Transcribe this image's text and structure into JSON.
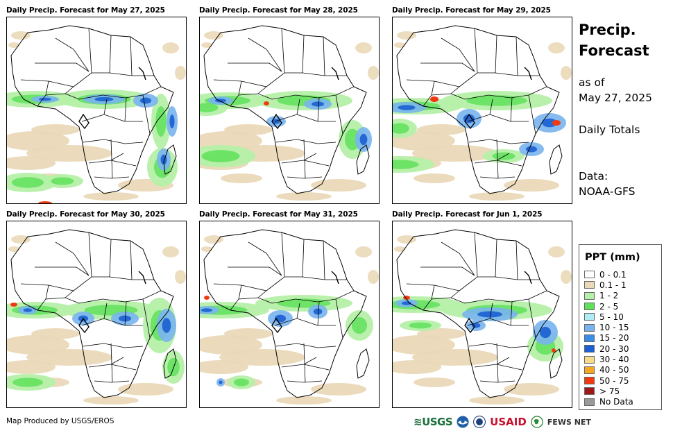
{
  "panels": [
    {
      "title": "Daily Precip. Forecast for May 27, 2025"
    },
    {
      "title": "Daily Precip. Forecast for May 28, 2025"
    },
    {
      "title": "Daily Precip. Forecast for May 29, 2025"
    },
    {
      "title": "Daily Precip. Forecast for May 30, 2025"
    },
    {
      "title": "Daily Precip. Forecast for May 31, 2025"
    },
    {
      "title": "Daily Precip. Forecast for Jun 1, 2025"
    }
  ],
  "side": {
    "title_line1": "Precip.",
    "title_line2": "Forecast",
    "as_of_line1": "as of",
    "as_of_line2": "May 27, 2025",
    "totals": "Daily Totals",
    "data_line1": "Data:",
    "data_line2": "NOAA-GFS"
  },
  "legend": {
    "title": "PPT (mm)",
    "items": [
      {
        "label": "0 - 0.1",
        "color": "#ffffff"
      },
      {
        "label": "0.1 - 1",
        "color": "#ead9b8"
      },
      {
        "label": "1 - 2",
        "color": "#b5f0a8"
      },
      {
        "label": "2 - 5",
        "color": "#5fe05a"
      },
      {
        "label": "5 - 10",
        "color": "#b0ecf4"
      },
      {
        "label": "10 - 15",
        "color": "#79b4ee"
      },
      {
        "label": "15 - 20",
        "color": "#3a8de6"
      },
      {
        "label": "20 - 30",
        "color": "#1b5fd2"
      },
      {
        "label": "30 - 40",
        "color": "#f6dc8a"
      },
      {
        "label": "40 - 50",
        "color": "#f5a623"
      },
      {
        "label": "50 - 75",
        "color": "#f23a12"
      },
      {
        "label": "> 75",
        "color": "#a11818"
      },
      {
        "label": "No Data",
        "color": "#9a9a9a"
      }
    ]
  },
  "footer": {
    "credit": "Map Produced by USGS/EROS",
    "logo_usgs": "≋USGS",
    "logo_usaid": "USAID",
    "logo_fews": "FEWS NET"
  }
}
